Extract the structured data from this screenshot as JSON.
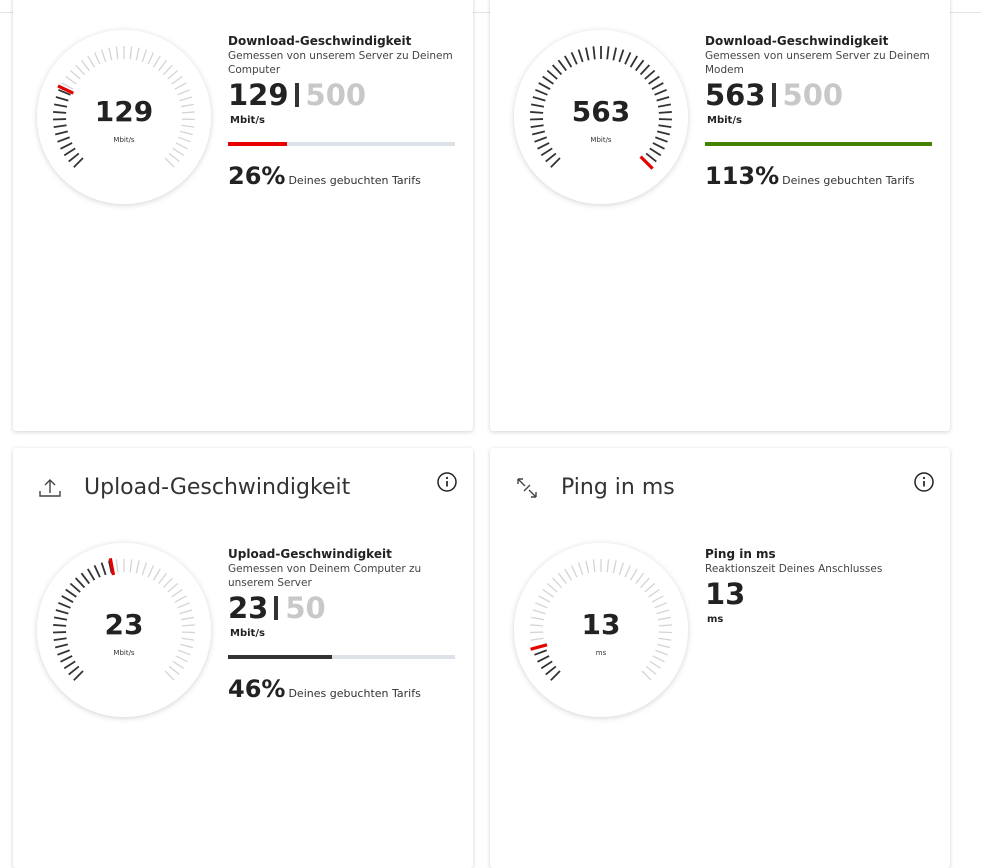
{
  "cards": [
    {
      "title": "Download-Geschwindigkeit",
      "subtitle": "Gemessen von unserem Server zu Deinem Computer",
      "value": 129,
      "max": 500,
      "unit": "Mbit/s",
      "percent": 26,
      "percent_label": "26%",
      "tariff_note": "Deines gebuchten Tarifs",
      "bar_color": "#e60000"
    },
    {
      "title": "Download-Geschwindigkeit",
      "subtitle": "Gemessen von unserem Server zu Deinem Modem",
      "value": 563,
      "max": 500,
      "unit": "Mbit/s",
      "percent": 113,
      "percent_label": "113%",
      "tariff_note": "Deines gebuchten Tarifs",
      "bar_color": "#428200"
    },
    {
      "header": "Upload-Geschwindigkeit",
      "title": "Upload-Geschwindigkeit",
      "subtitle": "Gemessen von Deinem Computer zu unserem Server",
      "value": 23,
      "max": 50,
      "unit": "Mbit/s",
      "percent": 46,
      "percent_label": "46%",
      "tariff_note": "Deines gebuchten Tarifs",
      "bar_color": "#333333"
    },
    {
      "header": "Ping in ms",
      "title": "Ping in ms",
      "subtitle": "Reaktionszeit Deines Anschlusses",
      "value": 13,
      "unit": "ms"
    }
  ]
}
